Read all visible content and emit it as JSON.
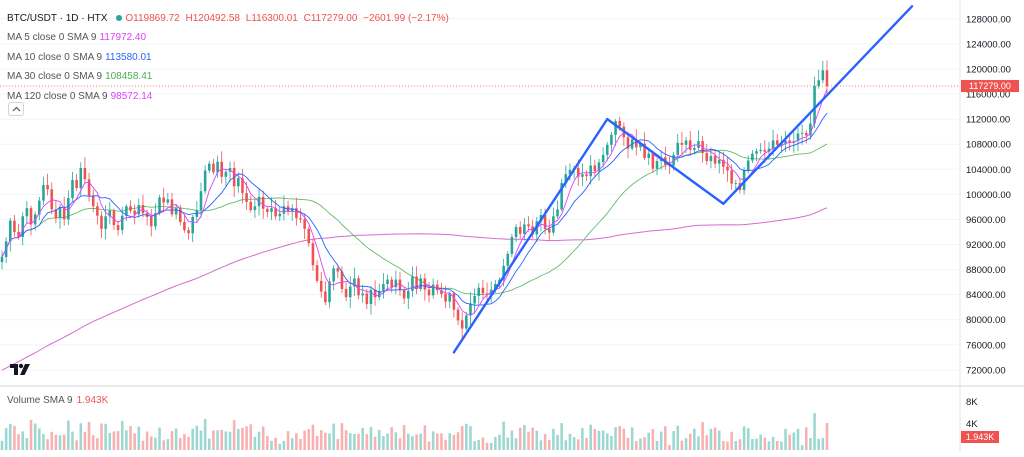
{
  "header": {
    "symbol": "BTC/USDT · 1D · HTX",
    "open": "O119869.72",
    "high": "H120492.58",
    "low": "L116300.01",
    "close": "C117279.00",
    "change": "−2601.99 (−2.17%)"
  },
  "indicators": [
    {
      "label": "MA 5 close 0 SMA 9",
      "value": "117972.40",
      "color": "#e040fb"
    },
    {
      "label": "MA 10 close 0 SMA 9",
      "value": "113580.01",
      "color": "#2962ff"
    },
    {
      "label": "MA 30 close 0 SMA 9",
      "value": "108458.41",
      "color": "#4caf50"
    },
    {
      "label": "MA 120 close 0 SMA 9",
      "value": "98572.14",
      "color": "#e040fb"
    }
  ],
  "volume_legend": {
    "label": "Volume SMA 9",
    "value": "1.943K"
  },
  "last_price_label": "117279.00",
  "last_volume_label": "1.943K",
  "colors": {
    "up": "#26a69a",
    "down": "#ef5350",
    "pattern_line": "#2962ff",
    "ma5": "#e040fb",
    "ma10": "#2962ff",
    "ma30": "#66bb6a",
    "ma120": "#d46bd0"
  },
  "chart_data": {
    "type": "candlestick",
    "title": "BTC/USDT · 1D · HTX",
    "price_axis": {
      "ticks": [
        72000,
        76000,
        80000,
        84000,
        88000,
        92000,
        96000,
        100000,
        104000,
        108000,
        112000,
        116000,
        120000,
        124000,
        128000
      ],
      "range": [
        70000,
        130000
      ]
    },
    "volume_axis": {
      "ticks": [
        "4K",
        "8K"
      ],
      "range": [
        0,
        10000
      ]
    },
    "grid": true,
    "close_series": [
      90000,
      92500,
      95800,
      94000,
      93200,
      96500,
      97800,
      95200,
      96800,
      99000,
      101500,
      100800,
      97600,
      96200,
      98000,
      96000,
      99400,
      102300,
      101000,
      104200,
      102400,
      99800,
      98100,
      96600,
      94500,
      96500,
      97400,
      95100,
      94300,
      96600,
      98100,
      97400,
      96800,
      98300,
      97000,
      96400,
      94900,
      97000,
      99500,
      98700,
      99200,
      96800,
      97800,
      95600,
      94300,
      93800,
      96400,
      97500,
      100500,
      103800,
      104900,
      103500,
      105200,
      102800,
      103600,
      104200,
      101300,
      102600,
      100200,
      98800,
      97500,
      98100,
      99600,
      97700,
      97200,
      97800,
      96500,
      96900,
      98100,
      97200,
      97800,
      96200,
      96000,
      94500,
      92200,
      88700,
      86200,
      84500,
      82800,
      86100,
      88200,
      87700,
      84900,
      83600,
      85300,
      86600,
      83900,
      84200,
      82500,
      84800,
      83600,
      84600,
      85700,
      86400,
      85200,
      86400,
      84700,
      83400,
      84600,
      86900,
      84900,
      86600,
      84800,
      83900,
      85600,
      84700,
      84100,
      82900,
      84200,
      81600,
      79900,
      78600,
      80700,
      82600,
      83800,
      85100,
      84200,
      84100,
      84800,
      85700,
      86400,
      88600,
      90500,
      93200,
      94800,
      93700,
      95200,
      94900,
      93600,
      95700,
      96700,
      94500,
      93900,
      96500,
      97600,
      101800,
      103200,
      103900,
      104200,
      102800,
      103200,
      102900,
      104600,
      103700,
      105100,
      106300,
      107900,
      109500,
      111700,
      110800,
      109100,
      107300,
      108800,
      107500,
      108100,
      105800,
      106500,
      104100,
      105300,
      105900,
      104700,
      104600,
      106300,
      108200,
      107900,
      108600,
      107100,
      107400,
      108500,
      106600,
      105300,
      106100,
      104900,
      105500,
      104400,
      103800,
      101700,
      101800,
      100700,
      103800,
      105400,
      106500,
      106900,
      107100,
      106800,
      107300,
      108600,
      107900,
      108100,
      108600,
      108300,
      108500,
      109700,
      109800,
      109400,
      111300,
      117300,
      118200,
      119800,
      117279
    ],
    "moving_averages": [
      {
        "name": "MA 5",
        "value": 117972.4
      },
      {
        "name": "MA 10",
        "value": 113580.01
      },
      {
        "name": "MA 30",
        "value": 108458.41
      },
      {
        "name": "MA 120",
        "value": 98572.14
      }
    ],
    "pattern_lines": [
      {
        "from": 74800,
        "to": 112000
      },
      {
        "from": 112000,
        "to": 98500
      },
      {
        "from": 98500,
        "to": 130000
      }
    ]
  }
}
